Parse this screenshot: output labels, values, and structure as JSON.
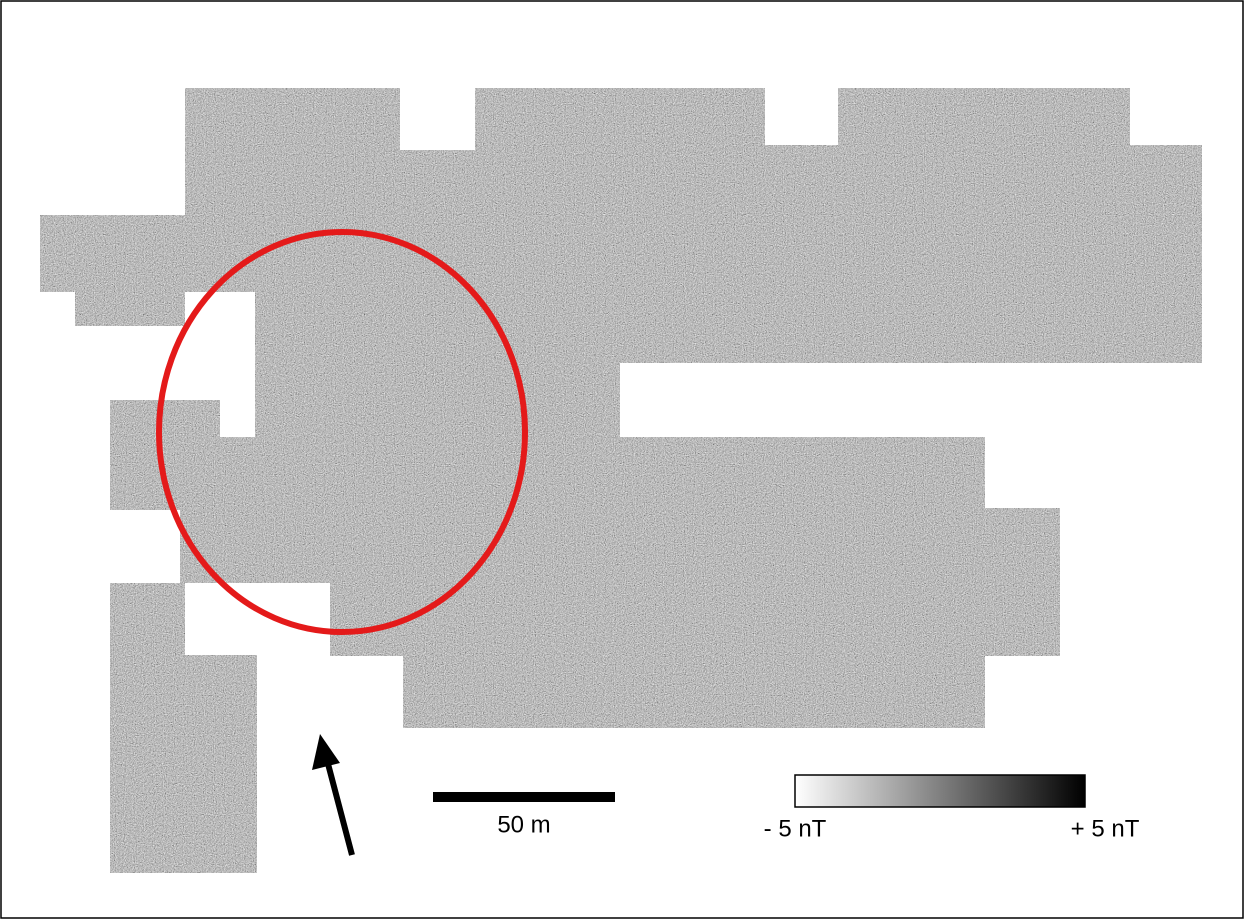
{
  "scale_bar": {
    "label": "50 m"
  },
  "legend": {
    "min_label": "- 5 nT",
    "max_label": "+ 5 nT"
  }
}
